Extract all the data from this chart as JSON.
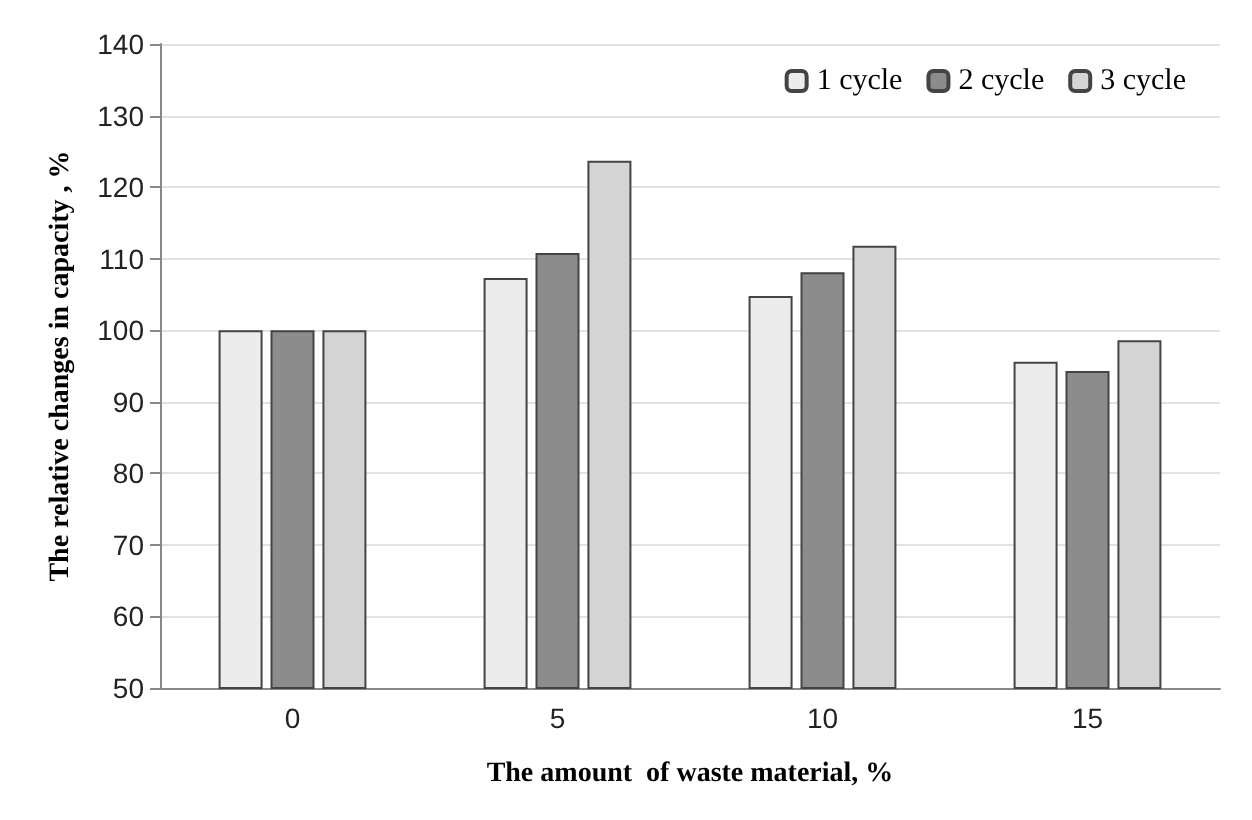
{
  "chart_data": {
    "type": "bar",
    "xlabel": "The amount  of waste material, %",
    "ylabel": "The relative changes in capacity , %",
    "categories": [
      "0",
      "5",
      "10",
      "15"
    ],
    "series": [
      {
        "name": "1 cycle",
        "color": "#ececec",
        "values": [
          100,
          107.3,
          104.8,
          95.6
        ]
      },
      {
        "name": "2 cycle",
        "color": "#8c8c8c",
        "values": [
          100,
          110.8,
          108.1,
          94.3
        ]
      },
      {
        "name": "3 cycle",
        "color": "#d4d4d4",
        "values": [
          100,
          123.7,
          111.8,
          98.6
        ]
      }
    ],
    "ylim": [
      50,
      140
    ],
    "yticks": [
      50,
      60,
      70,
      80,
      90,
      100,
      110,
      120,
      130,
      140
    ],
    "grid": "y",
    "legend": "top right"
  }
}
